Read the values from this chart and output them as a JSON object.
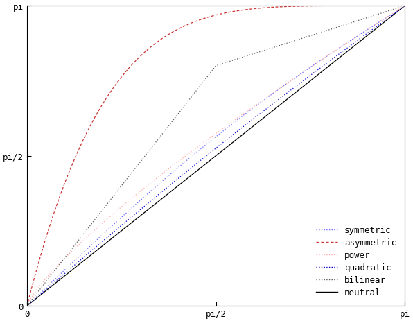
{
  "title": "",
  "xlabel": "",
  "ylabel": "",
  "xlim": [
    0,
    3.14159265358979
  ],
  "ylim": [
    0,
    3.14159265358979
  ],
  "pi": 3.14159265358979,
  "xtick_positions": [
    0,
    1.5707963267949,
    3.14159265358979
  ],
  "xtick_labels": [
    "0",
    "pi/2",
    "pi"
  ],
  "ytick_positions": [
    0,
    1.5707963267949,
    3.14159265358979
  ],
  "ytick_labels": [
    "0",
    "pi/2",
    "pi"
  ],
  "background_color": "#ffffff",
  "curves": {
    "neutral": {
      "color": "#000000",
      "linewidth": 0.9
    },
    "symmetric": {
      "color": "#6666ff",
      "linewidth": 0.9
    },
    "asymmetric": {
      "color": "#cc3333",
      "linewidth": 0.9
    },
    "power": {
      "color": "#ffaaaa",
      "linewidth": 0.9
    },
    "quadratic": {
      "color": "#0000cc",
      "linewidth": 0.9
    },
    "bilinear": {
      "color": "#555555",
      "linewidth": 0.9
    }
  },
  "legend_fontsize": 9,
  "tick_fontsize": 9,
  "font_family": "monospace"
}
